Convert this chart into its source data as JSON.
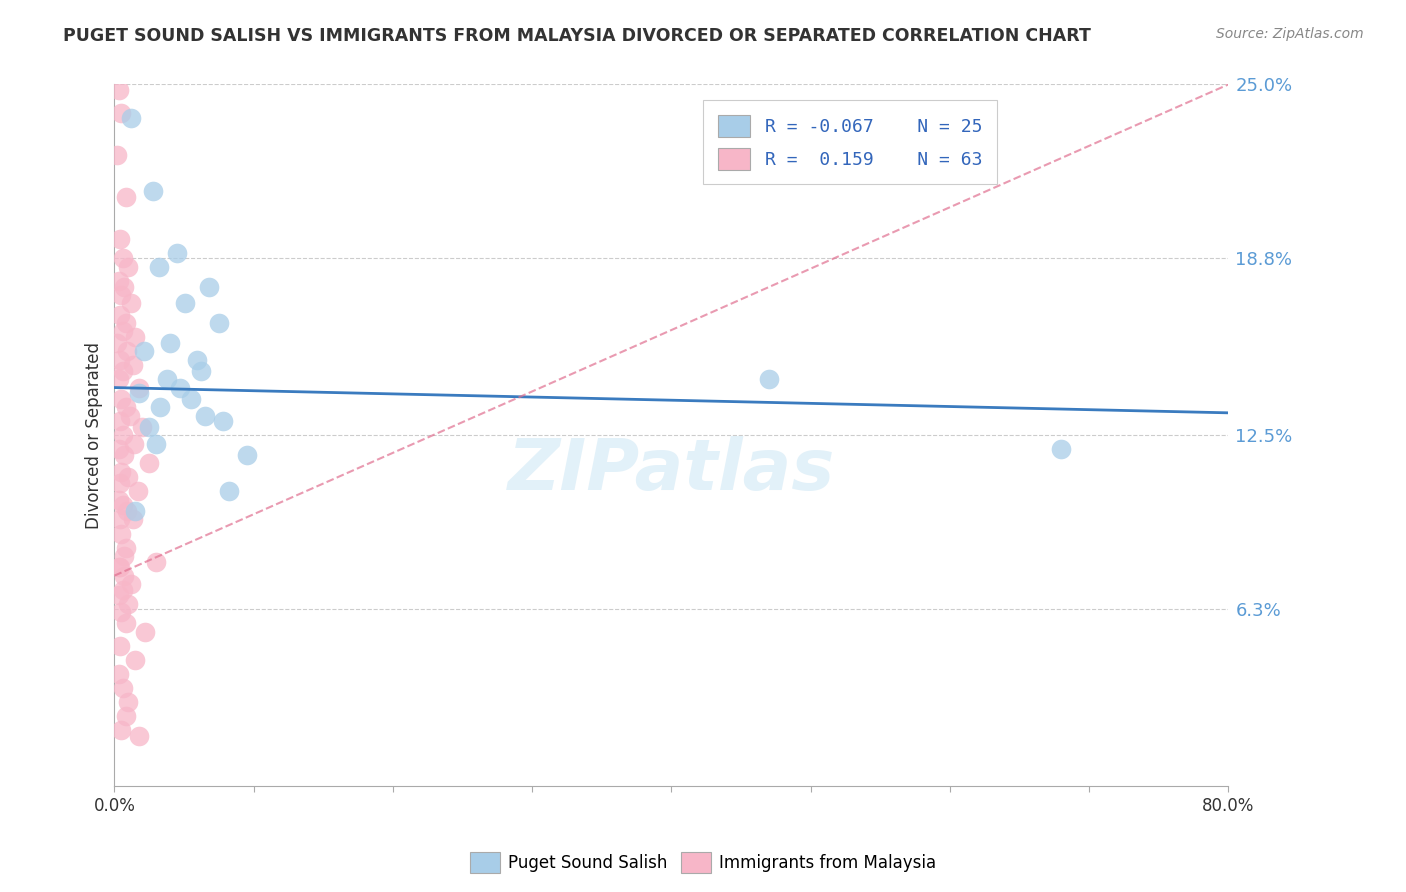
{
  "title": "PUGET SOUND SALISH VS IMMIGRANTS FROM MALAYSIA DIVORCED OR SEPARATED CORRELATION CHART",
  "source": "Source: ZipAtlas.com",
  "ylabel": "Divorced or Separated",
  "xmin": 0.0,
  "xmax": 80.0,
  "ymin": 0.0,
  "ymax": 25.0,
  "yticks": [
    6.3,
    12.5,
    18.8,
    25.0
  ],
  "ytick_labels": [
    "6.3%",
    "12.5%",
    "18.8%",
    "25.0%"
  ],
  "blue_R": -0.067,
  "blue_N": 25,
  "pink_R": 0.159,
  "pink_N": 63,
  "blue_color": "#a8cde8",
  "pink_color": "#f7b6c8",
  "blue_line_color": "#3a7bbf",
  "pink_line_color": "#e07090",
  "watermark": "ZIPatlas",
  "blue_scatter_x": [
    1.2,
    2.8,
    4.5,
    3.2,
    6.8,
    5.1,
    7.5,
    4.0,
    2.1,
    5.9,
    3.8,
    6.2,
    4.7,
    1.8,
    5.5,
    3.3,
    6.5,
    7.8,
    2.5,
    8.2,
    3.0,
    9.5,
    1.5,
    47.0,
    68.0
  ],
  "blue_scatter_y": [
    23.8,
    21.2,
    19.0,
    18.5,
    17.8,
    17.2,
    16.5,
    15.8,
    15.5,
    15.2,
    14.5,
    14.8,
    14.2,
    14.0,
    13.8,
    13.5,
    13.2,
    13.0,
    12.8,
    10.5,
    12.2,
    11.8,
    9.8,
    14.5,
    12.0
  ],
  "pink_scatter_x": [
    0.3,
    0.5,
    0.2,
    0.8,
    0.4,
    0.6,
    1.0,
    0.3,
    0.7,
    0.5,
    1.2,
    0.4,
    0.8,
    0.6,
    1.5,
    0.2,
    0.9,
    0.4,
    1.3,
    0.6,
    0.3,
    1.8,
    0.5,
    0.8,
    1.1,
    0.4,
    2.0,
    0.6,
    1.4,
    0.3,
    0.7,
    2.5,
    0.5,
    1.0,
    0.4,
    1.7,
    0.3,
    0.6,
    0.9,
    1.3,
    0.5,
    0.8,
    3.0,
    0.4,
    0.7,
    1.2,
    0.6,
    0.3,
    1.0,
    0.5,
    0.8,
    2.2,
    0.4,
    1.5,
    0.3,
    0.6,
    1.0,
    0.8,
    0.5,
    1.8,
    0.3,
    0.7,
    0.4
  ],
  "pink_scatter_y": [
    24.8,
    24.0,
    22.5,
    21.0,
    19.5,
    18.8,
    18.5,
    18.0,
    17.8,
    17.5,
    17.2,
    16.8,
    16.5,
    16.2,
    16.0,
    15.8,
    15.5,
    15.2,
    15.0,
    14.8,
    14.5,
    14.2,
    13.8,
    13.5,
    13.2,
    13.0,
    12.8,
    12.5,
    12.2,
    12.0,
    11.8,
    11.5,
    11.2,
    11.0,
    10.8,
    10.5,
    10.2,
    10.0,
    9.8,
    9.5,
    9.0,
    8.5,
    8.0,
    7.8,
    7.5,
    7.2,
    7.0,
    6.8,
    6.5,
    6.2,
    5.8,
    5.5,
    5.0,
    4.5,
    4.0,
    3.5,
    3.0,
    2.5,
    2.0,
    1.8,
    7.8,
    8.2,
    9.5
  ],
  "blue_trend_x": [
    0,
    80
  ],
  "blue_trend_y": [
    14.2,
    13.3
  ],
  "pink_trend_x": [
    0,
    80
  ],
  "pink_trend_y": [
    7.5,
    25.0
  ]
}
